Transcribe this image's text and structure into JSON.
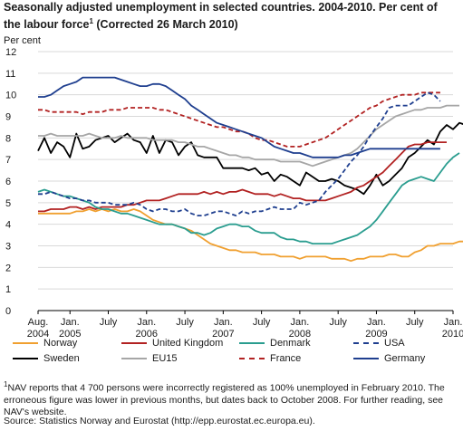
{
  "title": "Seasonally adjusted unemployment in selected countries. 2004-2010. Per cent of the labour force",
  "title_sup": "1",
  "title_suffix": " (Corrected 26 March 2010)",
  "footnote_marker": "1",
  "footnote": "NAV reports that 4 700 persons were incorrectly registered as 100% unemployed in February 2010. The erroneous figure was lower in previous months, but dates back to October 2008. For further reading, see NAV's website.",
  "source": "Source: Statistics Norway and Eurostat (http://epp.eurostat.ec.europa.eu).",
  "chart_data": {
    "type": "line",
    "ylabel": "Per cent",
    "ylim": [
      0,
      12
    ],
    "yticks": [
      0,
      1,
      2,
      3,
      4,
      5,
      6,
      7,
      8,
      9,
      10,
      11,
      12
    ],
    "grid": true,
    "x_start": "2004-08",
    "x_end": "2010-01",
    "xticks": [
      {
        "month": 0,
        "line1": "Aug.",
        "line2": "2004"
      },
      {
        "month": 5,
        "line1": "Jan.",
        "line2": "2005"
      },
      {
        "month": 11,
        "line1": "July",
        "line2": ""
      },
      {
        "month": 17,
        "line1": "Jan.",
        "line2": "2006"
      },
      {
        "month": 23,
        "line1": "July",
        "line2": ""
      },
      {
        "month": 29,
        "line1": "Jan.",
        "line2": "2007"
      },
      {
        "month": 35,
        "line1": "July",
        "line2": ""
      },
      {
        "month": 41,
        "line1": "Jan.",
        "line2": "2008"
      },
      {
        "month": 47,
        "line1": "July",
        "line2": ""
      },
      {
        "month": 53,
        "line1": "Jan.",
        "line2": "2009"
      },
      {
        "month": 59,
        "line1": "July",
        "line2": ""
      },
      {
        "month": 65,
        "line1": "Jan.",
        "line2": "2010"
      }
    ],
    "series": [
      {
        "name": "Norway",
        "color": "#f0a030",
        "dash": false,
        "values": [
          4.5,
          4.5,
          4.5,
          4.5,
          4.5,
          4.5,
          4.6,
          4.6,
          4.7,
          4.6,
          4.7,
          4.6,
          4.7,
          4.6,
          4.6,
          4.7,
          4.6,
          4.4,
          4.2,
          4.1,
          4.0,
          4.0,
          3.9,
          3.8,
          3.7,
          3.5,
          3.3,
          3.1,
          3.0,
          2.9,
          2.8,
          2.8,
          2.7,
          2.7,
          2.7,
          2.6,
          2.6,
          2.6,
          2.5,
          2.5,
          2.5,
          2.4,
          2.5,
          2.5,
          2.5,
          2.5,
          2.4,
          2.4,
          2.4,
          2.3,
          2.4,
          2.4,
          2.5,
          2.5,
          2.5,
          2.6,
          2.6,
          2.5,
          2.5,
          2.7,
          2.8,
          3.0,
          3.0,
          3.1,
          3.1,
          3.1,
          3.2,
          3.2,
          3.3,
          3.3,
          3.3,
          3.3,
          3.3
        ]
      },
      {
        "name": "Sweden",
        "color": "#000000",
        "dash": false,
        "values": [
          7.4,
          8.0,
          7.3,
          7.8,
          7.6,
          7.1,
          8.2,
          7.5,
          7.6,
          7.9,
          8.0,
          8.1,
          7.8,
          8.0,
          8.2,
          7.9,
          7.8,
          7.3,
          8.1,
          7.3,
          7.9,
          7.8,
          7.2,
          7.6,
          7.8,
          7.2,
          7.1,
          7.1,
          7.1,
          6.6,
          6.6,
          6.6,
          6.6,
          6.5,
          6.6,
          6.3,
          6.4,
          6.0,
          6.3,
          6.2,
          6.0,
          5.8,
          6.4,
          6.2,
          6.0,
          6.0,
          6.1,
          6.0,
          5.8,
          5.7,
          5.6,
          5.4,
          5.8,
          6.3,
          5.8,
          6.0,
          6.3,
          6.6,
          7.1,
          7.3,
          7.6,
          7.9,
          7.7,
          8.3,
          8.6,
          8.4,
          8.7,
          8.6,
          8.7,
          8.9,
          8.8,
          9.0,
          9.1
        ]
      },
      {
        "name": "United Kingdom",
        "color": "#b22222",
        "dash": false,
        "values": [
          4.6,
          4.6,
          4.7,
          4.7,
          4.7,
          4.8,
          4.8,
          4.7,
          4.8,
          4.7,
          4.8,
          4.8,
          4.8,
          4.8,
          4.9,
          4.9,
          5.0,
          5.1,
          5.1,
          5.1,
          5.2,
          5.3,
          5.4,
          5.4,
          5.4,
          5.4,
          5.5,
          5.4,
          5.5,
          5.4,
          5.5,
          5.5,
          5.6,
          5.5,
          5.4,
          5.4,
          5.4,
          5.3,
          5.4,
          5.3,
          5.2,
          5.2,
          5.1,
          5.1,
          5.1,
          5.1,
          5.2,
          5.3,
          5.4,
          5.5,
          5.7,
          5.8,
          6.0,
          6.2,
          6.4,
          6.7,
          7.0,
          7.3,
          7.6,
          7.7,
          7.7,
          7.8,
          7.8,
          7.8,
          7.8
        ]
      },
      {
        "name": "EU15",
        "color": "#a6a6a6",
        "dash": false,
        "values": [
          8.1,
          8.1,
          8.2,
          8.1,
          8.1,
          8.1,
          8.1,
          8.1,
          8.2,
          8.1,
          8.0,
          8.0,
          8.0,
          8.1,
          8.0,
          8.0,
          8.0,
          8.0,
          7.9,
          7.9,
          7.9,
          7.9,
          7.8,
          7.8,
          7.7,
          7.6,
          7.6,
          7.5,
          7.4,
          7.3,
          7.2,
          7.2,
          7.1,
          7.1,
          7.0,
          7.0,
          7.0,
          7.0,
          6.9,
          6.9,
          6.9,
          6.9,
          6.8,
          6.7,
          6.8,
          6.9,
          7.0,
          7.1,
          7.2,
          7.3,
          7.5,
          7.8,
          8.1,
          8.4,
          8.6,
          8.8,
          9.0,
          9.1,
          9.2,
          9.3,
          9.3,
          9.4,
          9.4,
          9.4,
          9.5,
          9.5,
          9.5
        ]
      },
      {
        "name": "Denmark",
        "color": "#2a9d8f",
        "dash": false,
        "values": [
          5.5,
          5.6,
          5.5,
          5.4,
          5.3,
          5.3,
          5.2,
          5.1,
          5.0,
          4.8,
          4.7,
          4.7,
          4.6,
          4.5,
          4.5,
          4.4,
          4.3,
          4.2,
          4.1,
          4.0,
          4.0,
          4.0,
          3.9,
          3.8,
          3.6,
          3.6,
          3.5,
          3.6,
          3.8,
          3.9,
          4.0,
          4.0,
          3.9,
          3.9,
          3.7,
          3.6,
          3.6,
          3.6,
          3.4,
          3.3,
          3.3,
          3.2,
          3.2,
          3.1,
          3.1,
          3.1,
          3.1,
          3.2,
          3.3,
          3.4,
          3.5,
          3.7,
          3.9,
          4.2,
          4.6,
          5.0,
          5.4,
          5.8,
          6.0,
          6.1,
          6.2,
          6.1,
          6.0,
          6.4,
          6.8,
          7.1,
          7.3
        ]
      },
      {
        "name": "France",
        "color": "#b22222",
        "dash": true,
        "values": [
          9.3,
          9.3,
          9.2,
          9.2,
          9.2,
          9.2,
          9.2,
          9.1,
          9.2,
          9.2,
          9.2,
          9.3,
          9.3,
          9.3,
          9.4,
          9.4,
          9.4,
          9.4,
          9.4,
          9.3,
          9.3,
          9.2,
          9.1,
          9.0,
          8.9,
          8.8,
          8.7,
          8.6,
          8.5,
          8.5,
          8.4,
          8.3,
          8.3,
          8.2,
          8.0,
          7.9,
          7.9,
          7.8,
          7.7,
          7.6,
          7.6,
          7.6,
          7.7,
          7.8,
          7.9,
          8.0,
          8.2,
          8.4,
          8.6,
          8.8,
          9.0,
          9.2,
          9.4,
          9.5,
          9.7,
          9.8,
          9.9,
          10.0,
          10.0,
          10.0,
          10.1,
          10.1,
          10.1,
          10.1
        ]
      },
      {
        "name": "USA",
        "color": "#1f3f8f",
        "dash": true,
        "values": [
          5.4,
          5.4,
          5.5,
          5.4,
          5.3,
          5.2,
          5.2,
          5.1,
          5.1,
          5.0,
          5.0,
          5.0,
          4.9,
          4.9,
          4.9,
          5.0,
          4.9,
          4.7,
          4.6,
          4.7,
          4.7,
          4.6,
          4.6,
          4.7,
          4.5,
          4.4,
          4.4,
          4.5,
          4.6,
          4.6,
          4.5,
          4.4,
          4.6,
          4.5,
          4.6,
          4.6,
          4.7,
          4.8,
          4.7,
          4.7,
          4.7,
          5.0,
          4.9,
          5.0,
          5.1,
          5.5,
          5.8,
          6.1,
          6.5,
          6.9,
          7.2,
          7.6,
          8.1,
          8.5,
          8.9,
          9.4,
          9.5,
          9.5,
          9.5,
          9.7,
          9.9,
          10.1,
          10.0,
          9.7
        ]
      },
      {
        "name": "Germany",
        "color": "#1f3f8f",
        "dash": false,
        "values": [
          9.9,
          9.9,
          10.0,
          10.2,
          10.4,
          10.5,
          10.6,
          10.8,
          10.8,
          10.8,
          10.8,
          10.8,
          10.8,
          10.7,
          10.6,
          10.5,
          10.4,
          10.4,
          10.5,
          10.5,
          10.4,
          10.2,
          10.0,
          9.8,
          9.5,
          9.3,
          9.1,
          8.9,
          8.7,
          8.6,
          8.5,
          8.4,
          8.3,
          8.2,
          8.1,
          8.0,
          7.8,
          7.6,
          7.5,
          7.4,
          7.3,
          7.3,
          7.2,
          7.1,
          7.1,
          7.1,
          7.1,
          7.1,
          7.2,
          7.2,
          7.3,
          7.4,
          7.5,
          7.5,
          7.5,
          7.5,
          7.5,
          7.5,
          7.5,
          7.5,
          7.5,
          7.5,
          7.5,
          7.5
        ]
      }
    ],
    "legend": {
      "placement": "bottom",
      "items": [
        {
          "name": "Norway",
          "color": "#f0a030",
          "dash": false
        },
        {
          "name": "United Kingdom",
          "color": "#b22222",
          "dash": false
        },
        {
          "name": "Denmark",
          "color": "#2a9d8f",
          "dash": false
        },
        {
          "name": "USA",
          "color": "#1f3f8f",
          "dash": true
        },
        {
          "name": "Sweden",
          "color": "#000000",
          "dash": false
        },
        {
          "name": "EU15",
          "color": "#a6a6a6",
          "dash": false
        },
        {
          "name": "France",
          "color": "#b22222",
          "dash": true
        },
        {
          "name": "Germany",
          "color": "#1f3f8f",
          "dash": false
        }
      ]
    }
  }
}
